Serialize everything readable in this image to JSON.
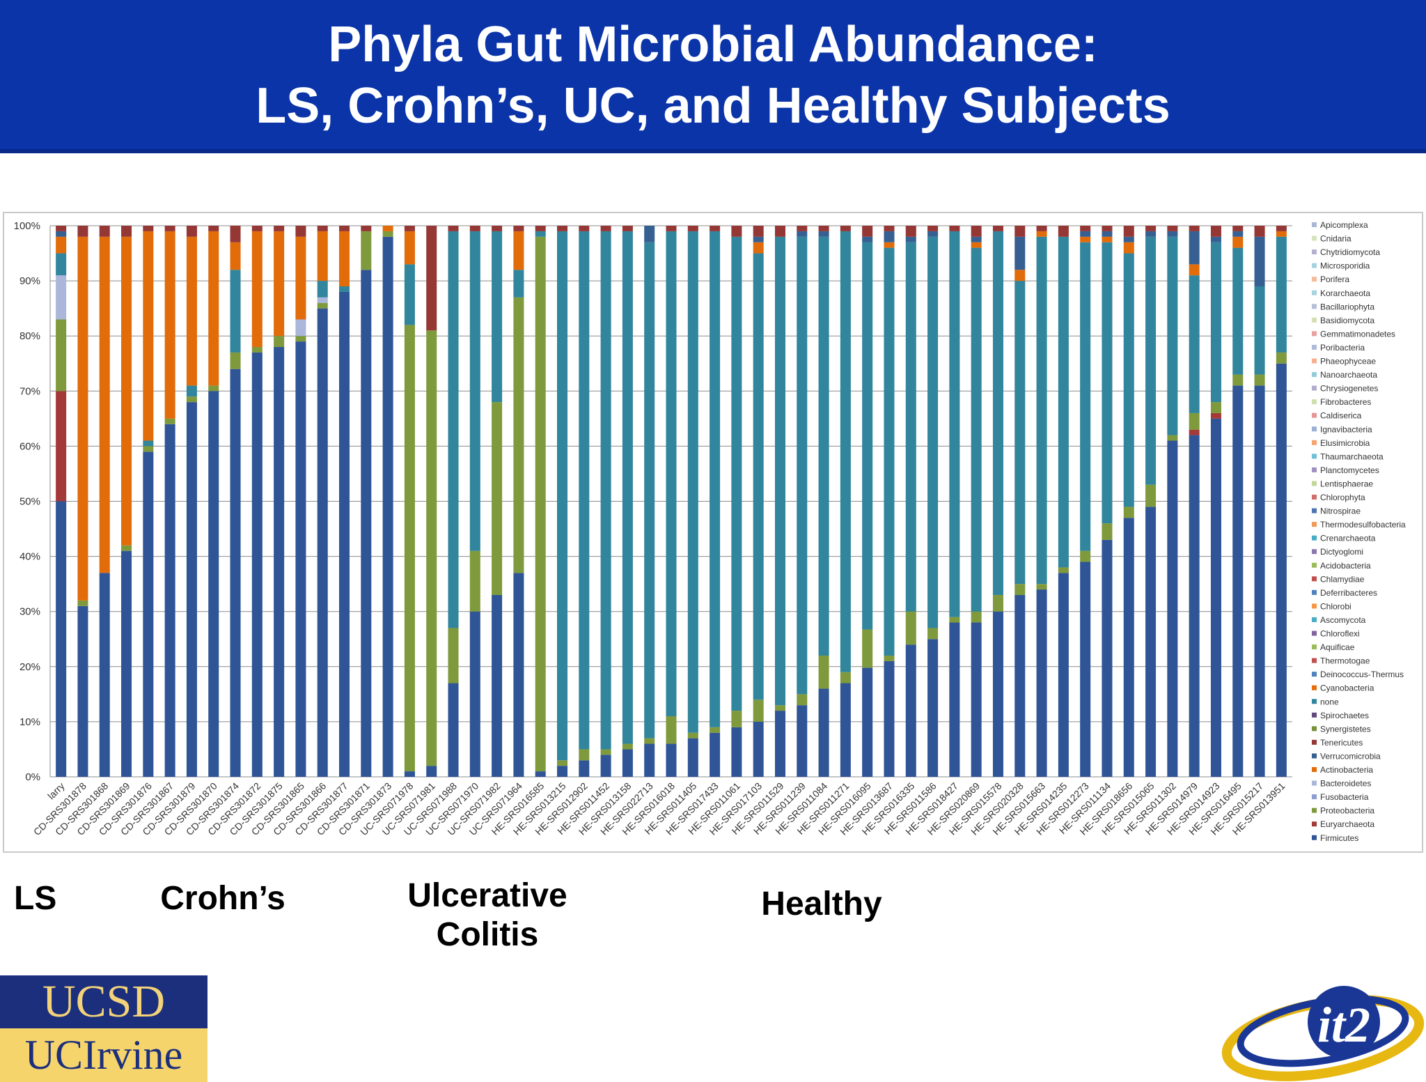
{
  "title": {
    "line1": "Phyla Gut Microbial Abundance:",
    "line2": "LS, Crohn’s, UC, and Healthy Subjects"
  },
  "group_labels": {
    "ls": "LS",
    "crohns": "Crohn’s",
    "uc_line1": "Ulcerative",
    "uc_line2": "Colitis",
    "healthy": "Healthy"
  },
  "logos": {
    "ucsd": "UCSD",
    "uci": "UCIrvine",
    "it2": "it2"
  },
  "colors": {
    "banner": "#0a34a8",
    "title_text": "#ffffff"
  },
  "chart_data": {
    "type": "stacked bar (100%)",
    "ylim": [
      0,
      100
    ],
    "yticks": [
      "0%",
      "10%",
      "20%",
      "30%",
      "40%",
      "50%",
      "60%",
      "70%",
      "80%",
      "90%",
      "100%"
    ],
    "grid": true,
    "legend_position": "right",
    "legend": [
      "Apicomplexa",
      "Cnidaria",
      "Chytridiomycota",
      "Microsporidia",
      "Porifera",
      "Korarchaeota",
      "Bacillariophyta",
      "Basidiomycota",
      "Gemmatimonadetes",
      "Poribacteria",
      "Phaeophyceae",
      "Nanoarchaeota",
      "Chrysiogenetes",
      "Fibrobacteres",
      "Caldiserica",
      "Ignavibacteria",
      "Elusimicrobia",
      "Thaumarchaeota",
      "Planctomycetes",
      "Lentisphaerae",
      "Chlorophyta",
      "Nitrospirae",
      "Thermodesulfobacteria",
      "Crenarchaeota",
      "Dictyoglomi",
      "Acidobacteria",
      "Chlamydiae",
      "Deferribacteres",
      "Chlorobi",
      "Ascomycota",
      "Chloroflexi",
      "Aquificae",
      "Thermotogae",
      "Deinococcus-Thermus",
      "Cyanobacteria",
      "none",
      "Spirochaetes",
      "Synergistetes",
      "Tenericutes",
      "Verrucomicrobia",
      "Actinobacteria",
      "Bacteroidetes",
      "Fusobacteria",
      "Proteobacteria",
      "Euryarchaeota",
      "Firmicutes"
    ],
    "legend_colors": [
      "#aab7d6",
      "#d7e3bd",
      "#b5b0cf",
      "#a6d2df",
      "#f7bb9b",
      "#a7d3e0",
      "#b7bfd8",
      "#d3e0b2",
      "#e8a0a0",
      "#aebbd9",
      "#f6b08f",
      "#93cbd9",
      "#b3accd",
      "#cfddaf",
      "#e49595",
      "#9ab1d4",
      "#f5a36f",
      "#6fbfd6",
      "#9e90c0",
      "#c4d79b",
      "#d16d6a",
      "#4f74b1",
      "#f09a59",
      "#49acc6",
      "#8b77ae",
      "#9bbb59",
      "#c0504d",
      "#4f81bd",
      "#f79646",
      "#4bacc6",
      "#8064a2",
      "#9bbb59",
      "#c0504d",
      "#4f81bd",
      "#e46c0a",
      "#31859c",
      "#604a7b",
      "#76923c",
      "#953735",
      "#366092",
      "#e26b0a",
      "#aab6da",
      "#8a9ed0",
      "#7f9a3c",
      "#a33a39",
      "#2f5597"
    ],
    "series_order_bottom_to_top": [
      "Firmicutes",
      "Euryarchaeota",
      "Proteobacteria",
      "Bacteroidetes",
      "none",
      "Actinobacteria",
      "Verrucomicrobia",
      "Tenericutes"
    ],
    "categories": [
      "larry",
      "CD-SRS301878",
      "CD-SRS301868",
      "CD-SRS301869",
      "CD-SRS301876",
      "CD-SRS301867",
      "CD-SRS301879",
      "CD-SRS301870",
      "CD-SRS301874",
      "CD-SRS301872",
      "CD-SRS301875",
      "CD-SRS301865",
      "CD-SRS301866",
      "CD-SRS301877",
      "CD-SRS301871",
      "CD-SRS301873",
      "UC-SRS071978",
      "UC-SRS071981",
      "UC-SRS071988",
      "UC-SRS071970",
      "UC-SRS071982",
      "UC-SRS071964",
      "HE-SRS016585",
      "HE-SRS013215",
      "HE-SRS012902",
      "HE-SRS011452",
      "HE-SRS013158",
      "HE-SRS022713",
      "HE-SRS016018",
      "HE-SRS011405",
      "HE-SRS017433",
      "HE-SRS011061",
      "HE-SRS017103",
      "HE-SRS011529",
      "HE-SRS011239",
      "HE-SRS011084",
      "HE-SRS011271",
      "HE-SRS016095",
      "HE-SRS013687",
      "HE-SRS016335",
      "HE-SRS011586",
      "HE-SRS018427",
      "HE-SRS020869",
      "HE-SRS015578",
      "HE-SRS020328",
      "HE-SRS015663",
      "HE-SRS014235",
      "HE-SRS012273",
      "HE-SRS011134",
      "HE-SRS018656",
      "HE-SRS015065",
      "HE-SRS011302",
      "HE-SRS014979",
      "HE-SRS014923",
      "HE-SRS016495",
      "HE-SRS015217",
      "HE-SRS013951"
    ],
    "series": [
      {
        "name": "Firmicutes",
        "values": [
          50,
          31,
          37,
          41,
          59,
          64,
          68,
          70,
          74,
          77,
          78,
          79,
          85,
          88,
          92,
          98,
          1,
          2,
          17,
          30,
          33,
          37,
          1,
          2,
          3,
          4,
          5,
          6,
          6,
          7,
          8,
          9,
          10,
          12,
          13,
          16,
          17,
          20,
          21,
          24,
          25,
          28,
          28,
          30,
          33,
          34,
          37,
          39,
          43,
          47,
          49,
          61,
          62,
          65,
          71,
          71,
          75
        ]
      },
      {
        "name": "Euryarchaeota",
        "values": [
          20,
          0,
          0,
          0,
          0,
          0,
          0,
          0,
          0,
          0,
          0,
          0,
          0,
          0,
          0,
          0,
          0,
          0,
          0,
          0,
          0,
          0,
          0,
          0,
          0,
          0,
          0,
          0,
          0,
          0,
          0,
          0,
          0,
          0,
          0,
          0,
          0,
          0,
          0,
          0,
          0,
          0,
          0,
          0,
          0,
          0,
          0,
          0,
          0,
          0,
          0,
          0,
          1,
          1,
          0,
          0,
          0
        ]
      },
      {
        "name": "Proteobacteria",
        "values": [
          13,
          1,
          0,
          1,
          1,
          1,
          1,
          1,
          3,
          1,
          2,
          1,
          1,
          0,
          7,
          1,
          81,
          79,
          10,
          11,
          35,
          50,
          97,
          1,
          2,
          1,
          1,
          1,
          5,
          1,
          1,
          3,
          4,
          1,
          2,
          6,
          2,
          7,
          1,
          6,
          2,
          1,
          2,
          3,
          2,
          1,
          1,
          2,
          3,
          2,
          4,
          1,
          3,
          2,
          2,
          2,
          2
        ]
      },
      {
        "name": "Bacteroidetes",
        "values": [
          8,
          0,
          0,
          0,
          0,
          0,
          0,
          0,
          0,
          0,
          0,
          3,
          1,
          0,
          0,
          0,
          0,
          0,
          0,
          0,
          0,
          0,
          0,
          0,
          0,
          0,
          0,
          0,
          0,
          0,
          0,
          0,
          0,
          0,
          0,
          0,
          0,
          0,
          0,
          0,
          0,
          0,
          0,
          0,
          0,
          0,
          0,
          0,
          0,
          0,
          0,
          0,
          0,
          0,
          0,
          0,
          0
        ]
      },
      {
        "name": "none",
        "values": [
          4,
          0,
          0,
          0,
          1,
          0,
          2,
          0,
          15,
          0,
          0,
          0,
          3,
          1,
          0,
          0,
          11,
          0,
          72,
          58,
          31,
          5,
          1,
          96,
          94,
          94,
          93,
          90,
          88,
          91,
          90,
          86,
          81,
          85,
          83,
          76,
          80,
          71,
          74,
          67,
          71,
          70,
          66,
          66,
          55,
          63,
          60,
          56,
          51,
          46,
          45,
          36,
          25,
          29,
          23,
          16,
          21
        ]
      },
      {
        "name": "Actinobacteria",
        "values": [
          3,
          66,
          61,
          56,
          38,
          34,
          27,
          28,
          5,
          21,
          19,
          15,
          9,
          10,
          0,
          1,
          6,
          0,
          0,
          0,
          0,
          7,
          0,
          0,
          0,
          0,
          0,
          0,
          0,
          0,
          0,
          0,
          2,
          0,
          0,
          0,
          0,
          0,
          1,
          0,
          0,
          0,
          1,
          0,
          2,
          1,
          0,
          1,
          1,
          2,
          0,
          0,
          2,
          0,
          2,
          0,
          1
        ]
      },
      {
        "name": "Verrucomicrobia",
        "values": [
          1,
          0,
          0,
          0,
          0,
          0,
          0,
          0,
          0,
          0,
          0,
          0,
          0,
          0,
          0,
          0,
          0,
          0,
          0,
          0,
          0,
          0,
          0,
          0,
          0,
          0,
          0,
          3,
          0,
          0,
          0,
          0,
          1,
          0,
          1,
          1,
          0,
          1,
          2,
          1,
          1,
          0,
          1,
          0,
          6,
          0,
          0,
          1,
          1,
          1,
          1,
          1,
          6,
          1,
          1,
          9,
          0
        ]
      },
      {
        "name": "Tenericutes",
        "values": [
          1,
          2,
          2,
          2,
          1,
          1,
          2,
          1,
          3,
          1,
          1,
          2,
          1,
          1,
          1,
          0,
          1,
          19,
          1,
          1,
          1,
          1,
          1,
          1,
          1,
          1,
          1,
          0,
          1,
          1,
          1,
          2,
          2,
          2,
          1,
          1,
          1,
          2,
          1,
          2,
          1,
          1,
          2,
          1,
          2,
          1,
          2,
          1,
          1,
          2,
          1,
          1,
          1,
          2,
          1,
          2,
          1
        ]
      }
    ]
  }
}
